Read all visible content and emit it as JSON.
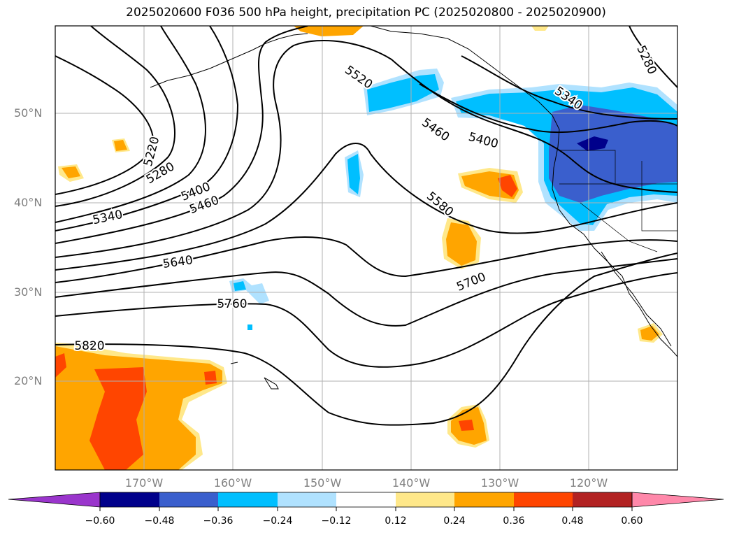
{
  "title": "2025020600 F036 500 hPa height, precipitation PC (2025020800 - 2025020900)",
  "lat_labels": [
    "50°N",
    "40°N",
    "30°N",
    "20°N"
  ],
  "lon_labels": [
    "170°W",
    "160°W",
    "150°W",
    "140°W",
    "130°W",
    "120°W"
  ],
  "contour_labels": [
    "5220",
    "5280",
    "5340",
    "5400",
    "5460",
    "5520",
    "5580",
    "5640",
    "5700",
    "5760",
    "5820",
    "5400",
    "5460",
    "5340",
    "5280"
  ],
  "colorbar": {
    "tick_labels": [
      "−0.60",
      "−0.48",
      "−0.36",
      "−0.24",
      "−0.12",
      "0.12",
      "0.24",
      "0.36",
      "0.48",
      "0.60"
    ],
    "colors": [
      "#9a35cc",
      "#00008b",
      "#3a5fcd",
      "#00bfff",
      "#b0e2ff",
      "#ffffff",
      "#ffe88a",
      "#ffa500",
      "#ff4500",
      "#b22222",
      "#ff88aa"
    ]
  },
  "map_data": {
    "region": "North Pacific / western North America",
    "lat_range": [
      10,
      60
    ],
    "lon_range": [
      -180,
      -110
    ],
    "field": "500 hPa geopotential height (dam contours)",
    "shading": "precipitation PC"
  }
}
